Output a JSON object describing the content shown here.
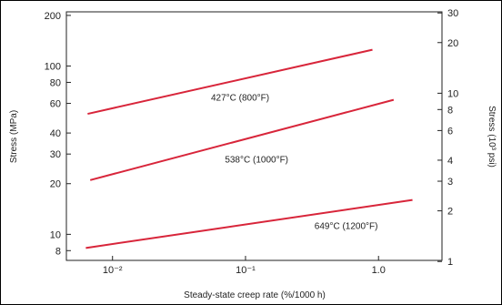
{
  "chart_data": {
    "type": "line",
    "title": "",
    "xlabel": "Steady-state creep rate (%/1000 h)",
    "ylabel": "Stress (MPa)",
    "y2label": "Stress (10³ psi)",
    "xscale": "log",
    "yscale": "log",
    "xlim": [
      0.0045,
      3.0
    ],
    "ylim": [
      7,
      210
    ],
    "x_ticks": [
      0.01,
      0.1,
      1.0
    ],
    "x_tick_labels": [
      "10⁻²",
      "10⁻¹",
      "1.0"
    ],
    "y_ticks": [
      8,
      10,
      20,
      30,
      40,
      60,
      80,
      100,
      200
    ],
    "y_tick_labels": [
      "8",
      "10",
      "20",
      "30",
      "40",
      "60",
      "80",
      "100",
      "200"
    ],
    "y2_ticks": [
      1,
      2,
      3,
      4,
      6,
      8,
      10,
      20,
      30
    ],
    "y2_tick_labels": [
      "1",
      "2",
      "3",
      "4",
      "6",
      "8",
      "10",
      "20",
      "30"
    ],
    "grid": false,
    "line_color": "#d8253a",
    "series": [
      {
        "name": "427°C (800°F)",
        "x": [
          0.0065,
          0.9
        ],
        "y": [
          52,
          125
        ]
      },
      {
        "name": "538°C (1000°F)",
        "x": [
          0.0068,
          1.3
        ],
        "y": [
          21,
          63
        ]
      },
      {
        "name": "649°C (1200°F)",
        "x": [
          0.0063,
          1.8
        ],
        "y": [
          8.3,
          16
        ]
      }
    ]
  }
}
